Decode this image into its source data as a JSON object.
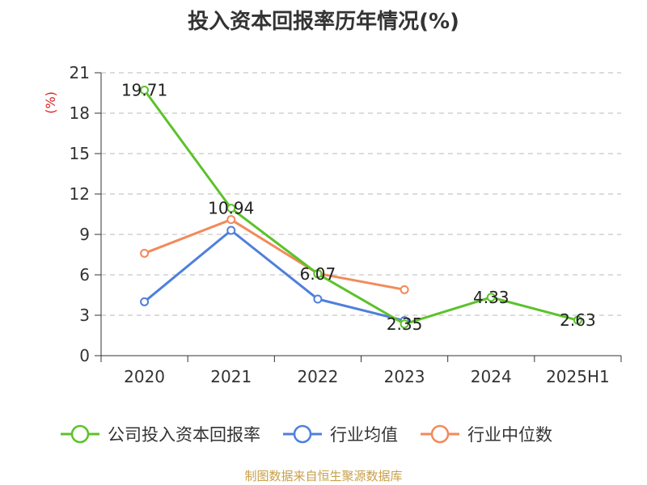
{
  "chart_data": {
    "type": "line",
    "title": "投入资本回报率历年情况(%)",
    "ylabel": "(%)",
    "xlabel": "",
    "categories": [
      "2020",
      "2021",
      "2022",
      "2023",
      "2024",
      "2025H1"
    ],
    "ylim": [
      0,
      21
    ],
    "yticks": [
      "0",
      "3",
      "6",
      "9",
      "12",
      "15",
      "18",
      "21"
    ],
    "grid": "horizontal-dashed",
    "legend_position": "bottom",
    "series": [
      {
        "name": "公司投入资本回报率",
        "color": "#5cc22a",
        "values": [
          19.71,
          10.94,
          6.07,
          2.35,
          4.33,
          2.63
        ],
        "labels": [
          "19.71",
          "10.94",
          "6.07",
          "2.35",
          "4.33",
          "2.63"
        ]
      },
      {
        "name": "行业均值",
        "color": "#4f7fdc",
        "values": [
          4.0,
          9.3,
          4.2,
          2.6,
          null,
          null
        ]
      },
      {
        "name": "行业中位数",
        "color": "#f28a5a",
        "values": [
          7.6,
          10.1,
          6.1,
          4.9,
          null,
          null
        ]
      }
    ]
  },
  "source": "制图数据来自恒生聚源数据库"
}
